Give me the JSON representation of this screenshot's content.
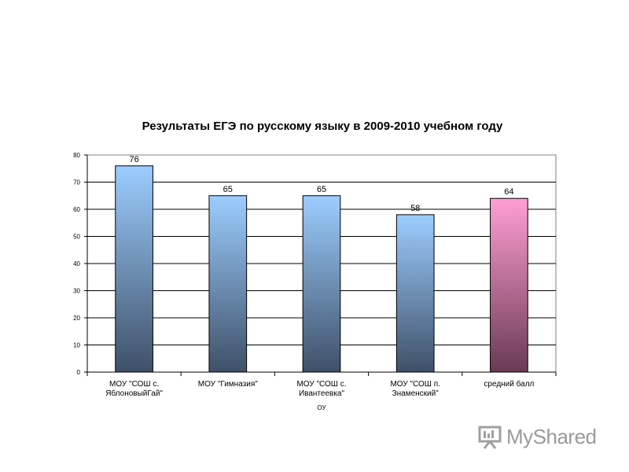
{
  "chart_data": {
    "type": "bar",
    "title": "Результаты ЕГЭ по русскому языку в 2009-2010 учебном году",
    "xlabel": "ОУ",
    "ylabel": "",
    "ylim": [
      0,
      80
    ],
    "yticks": [
      0,
      10,
      20,
      30,
      40,
      50,
      60,
      70,
      80
    ],
    "grid": true,
    "categories": [
      [
        "МОУ \"СОШ с.",
        "ЯблоновыйГай\""
      ],
      [
        "МОУ \"Гимназия\""
      ],
      [
        "МОУ \"СОШ с.",
        "Ивантеевка\""
      ],
      [
        "МОУ \"СОШ п.",
        "Знаменский\""
      ],
      [
        "средний балл"
      ]
    ],
    "values": [
      76,
      65,
      65,
      58,
      64
    ],
    "colors": {
      "school_top": "#9ccdff",
      "school_bottom": "#3f5068",
      "average_top": "#ff9fd4",
      "average_bottom": "#6a3a54",
      "grid": "#000000"
    }
  },
  "watermark": {
    "text": "MyShared",
    "icon": "presentation-board-icon"
  }
}
